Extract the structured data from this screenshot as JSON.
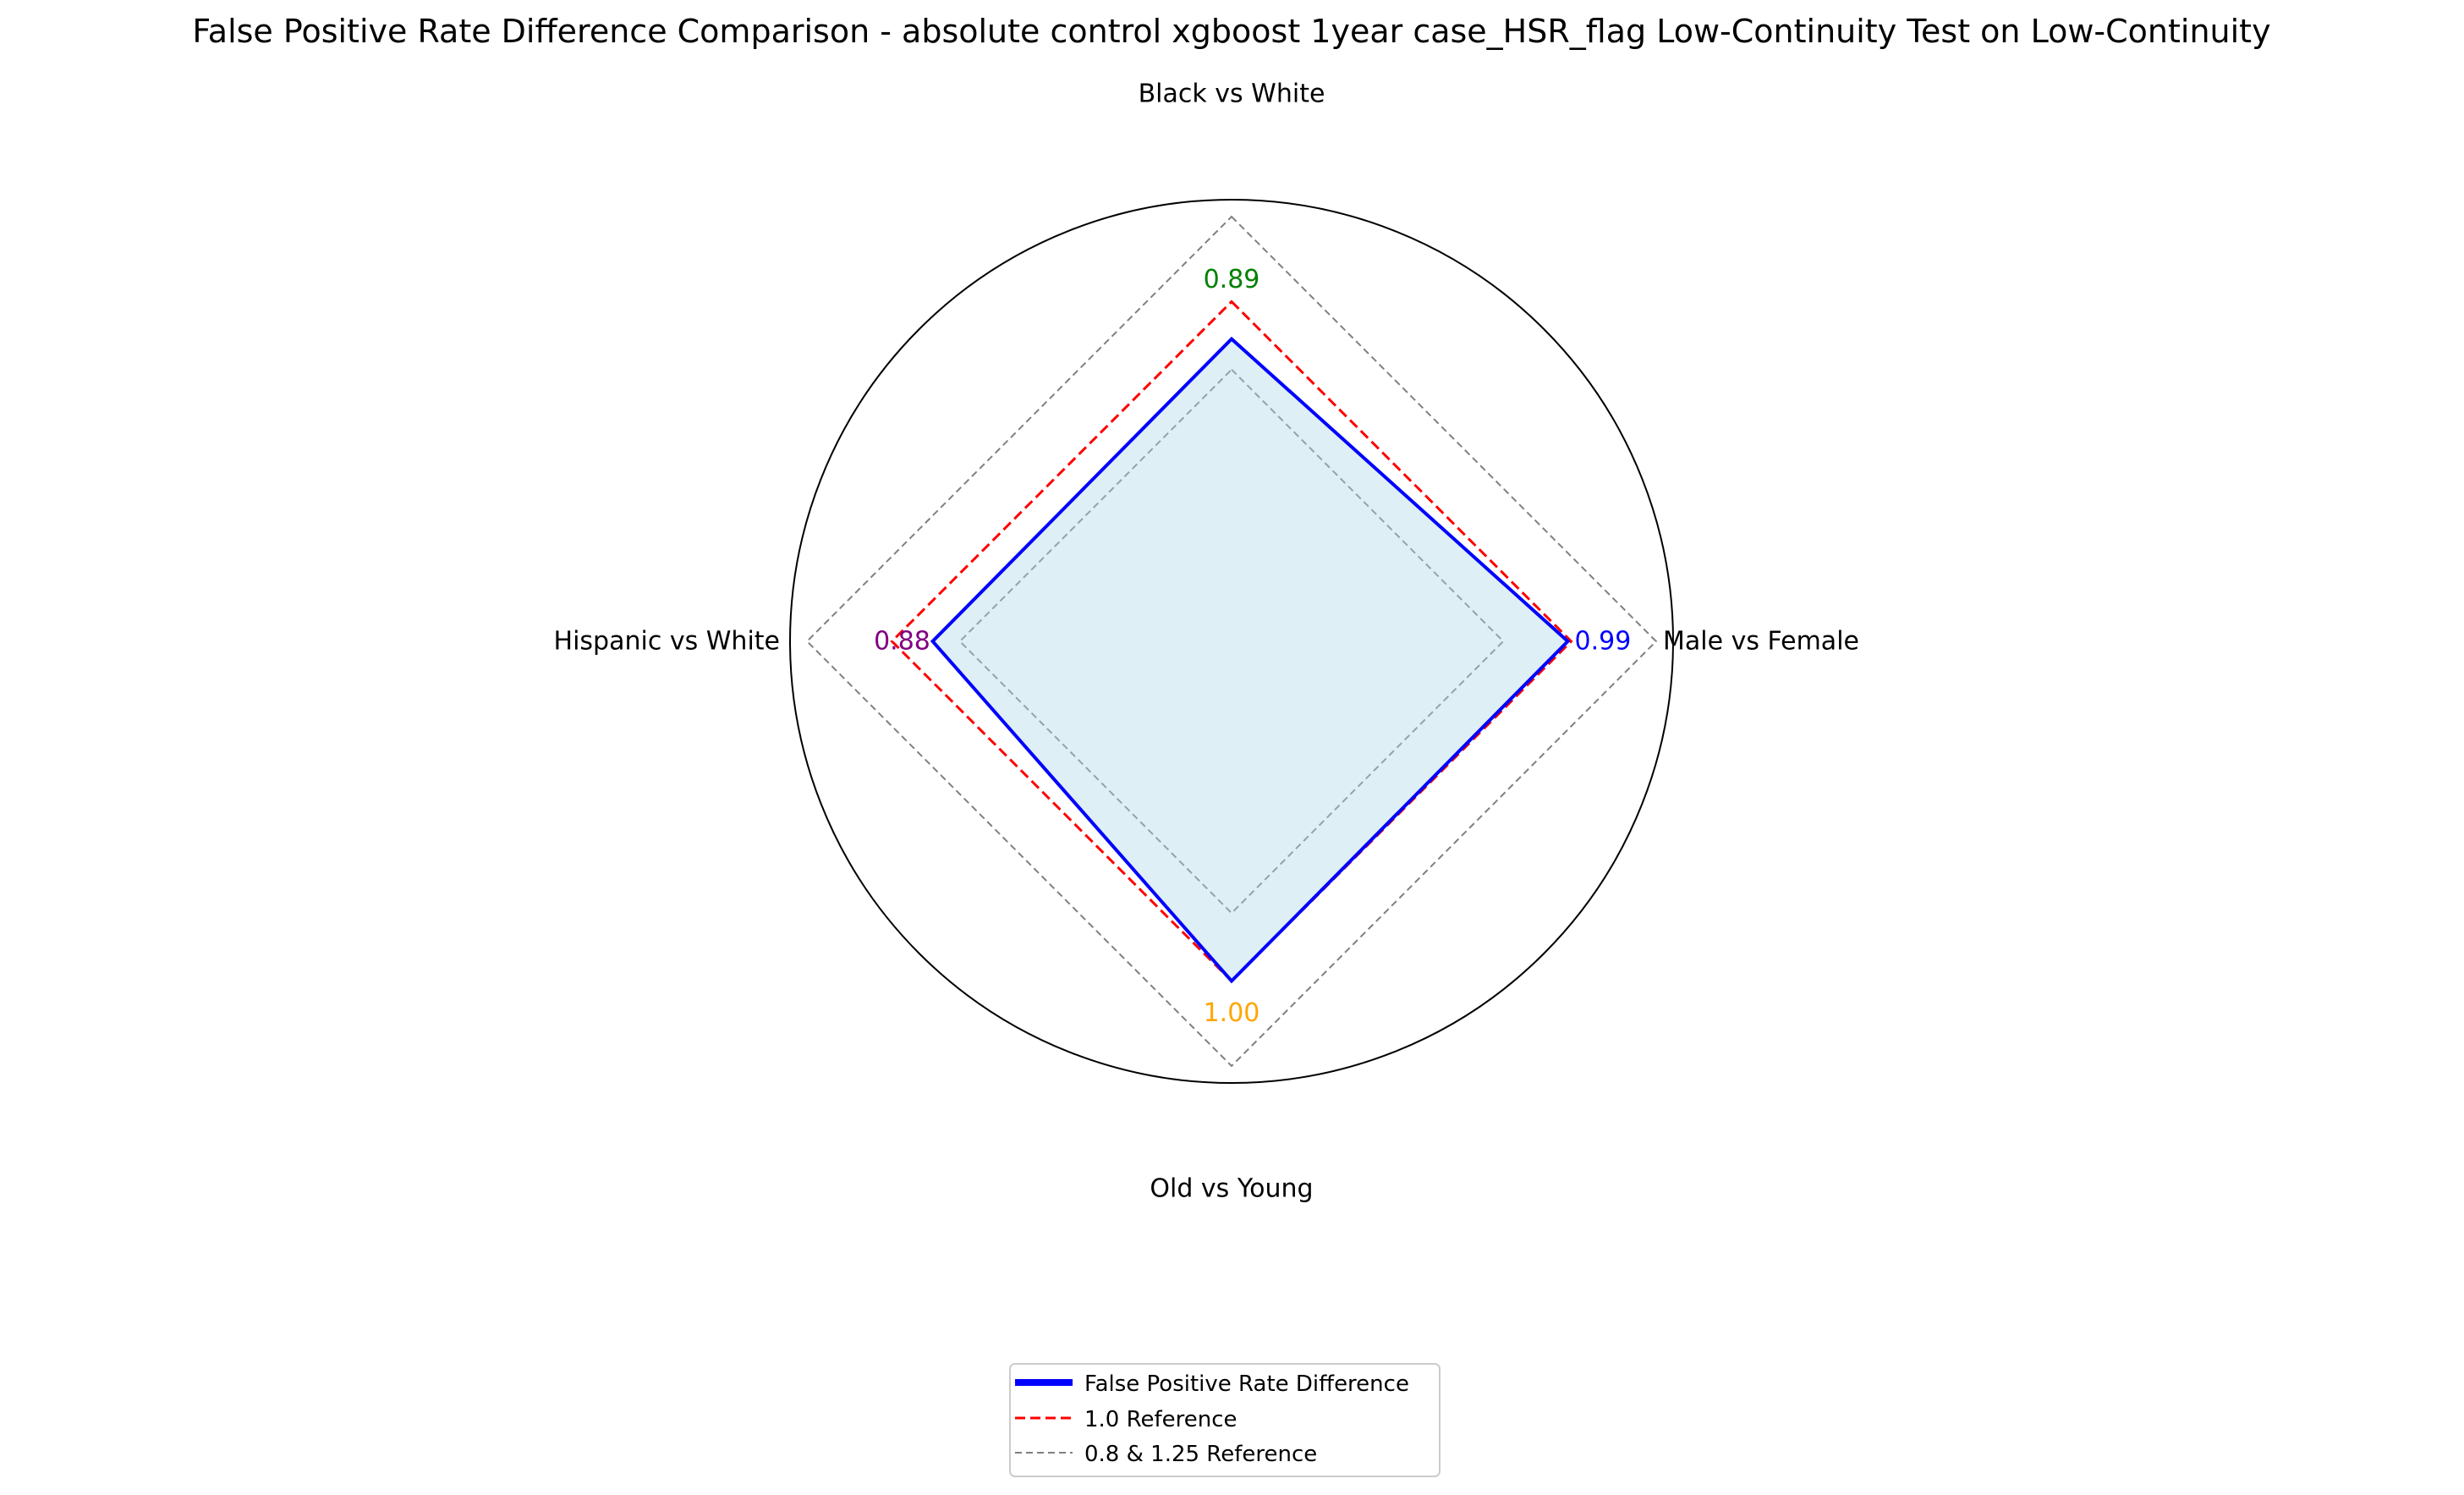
{
  "chart_data": {
    "type": "radar",
    "title": "False Positive Rate Difference Comparison - absolute control xgboost 1year case_HSR_flag Low-Continuity Test on Low-Continuity",
    "categories": [
      "Black vs White",
      "Male vs Female",
      "Old vs Young",
      "Hispanic vs White"
    ],
    "values": [
      0.89,
      0.99,
      1.0,
      0.88
    ],
    "value_labels": [
      "0.89",
      "0.99",
      "1.00",
      "0.88"
    ],
    "value_label_colors": [
      "#008000",
      "#0000ff",
      "#ffa500",
      "#800080"
    ],
    "rlim": [
      0,
      1.3
    ],
    "grid": false,
    "series": [
      {
        "name": "False Positive Rate Difference",
        "values": [
          0.89,
          0.99,
          1.0,
          0.88
        ],
        "color": "#0000ff",
        "fill": "#add8e6",
        "style": "solid"
      }
    ],
    "reference_lines": [
      {
        "value": 1.0,
        "color": "#ff0000",
        "style": "dashed"
      },
      {
        "value": 0.8,
        "color": "#808080",
        "style": "dashed"
      },
      {
        "value": 1.25,
        "color": "#808080",
        "style": "dashed"
      }
    ],
    "legend": {
      "placement": "bottom-center",
      "entries": [
        {
          "label": "False Positive Rate Difference",
          "color": "#0000ff",
          "style": "solid"
        },
        {
          "label": "1.0 Reference",
          "color": "#ff0000",
          "style": "dashed"
        },
        {
          "label": "0.8 & 1.25 Reference",
          "color": "#808080",
          "style": "dashed"
        }
      ]
    }
  }
}
